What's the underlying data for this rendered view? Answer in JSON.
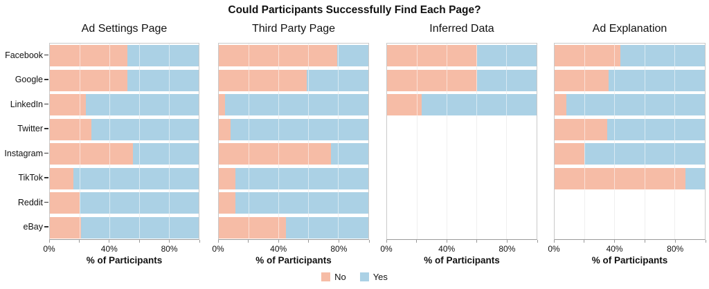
{
  "title": "Could Participants Successfully Find Each Page?",
  "legend": {
    "items": [
      {
        "label": "No",
        "color": "#F6BCA6"
      },
      {
        "label": "Yes",
        "color": "#ABD1E5"
      }
    ]
  },
  "chart_data": {
    "type": "bar",
    "orientation": "horizontal",
    "stacked_percent": true,
    "title": "Could Participants Successfully Find Each Page?",
    "categories": [
      "Facebook",
      "Google",
      "LinkedIn",
      "Twitter",
      "Instagram",
      "TikTok",
      "Reddit",
      "eBay"
    ],
    "xlabel": "% of Participants",
    "xlim": [
      0,
      100
    ],
    "x_ticks": [
      0,
      20,
      40,
      60,
      80,
      100
    ],
    "x_tick_labels": [
      "0%",
      "",
      "40%",
      "",
      "80%",
      ""
    ],
    "grid": true,
    "legend_position": "bottom",
    "series_colors": {
      "No": "#F6BCA6",
      "Yes": "#ABD1E5"
    },
    "panels": [
      {
        "title": "Ad Settings Page",
        "series": [
          {
            "name": "No",
            "values": [
              52,
              52,
              24,
              28,
              56,
              16,
              20,
              21
            ]
          },
          {
            "name": "Yes",
            "values": [
              48,
              48,
              76,
              72,
              44,
              84,
              80,
              79
            ]
          }
        ]
      },
      {
        "title": "Third Party Page",
        "series": [
          {
            "name": "No",
            "values": [
              79,
              59,
              4,
              8,
              75,
              11,
              11,
              45
            ]
          },
          {
            "name": "Yes",
            "values": [
              21,
              41,
              96,
              92,
              25,
              89,
              89,
              55
            ]
          }
        ]
      },
      {
        "title": "Inferred Data",
        "series": [
          {
            "name": "No",
            "values": [
              60,
              60,
              23,
              null,
              null,
              null,
              null,
              null
            ]
          },
          {
            "name": "Yes",
            "values": [
              40,
              40,
              77,
              null,
              null,
              null,
              null,
              null
            ]
          }
        ]
      },
      {
        "title": "Ad Explanation",
        "series": [
          {
            "name": "No",
            "values": [
              44,
              36,
              8,
              35,
              20,
              87,
              null,
              null
            ]
          },
          {
            "name": "Yes",
            "values": [
              56,
              64,
              92,
              65,
              80,
              13,
              null,
              null
            ]
          }
        ]
      }
    ]
  }
}
